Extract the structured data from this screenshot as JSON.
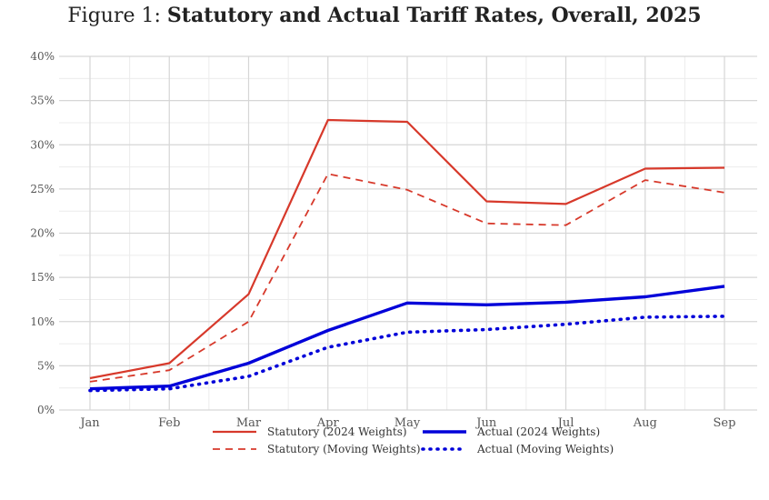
{
  "chart_data": {
    "type": "line",
    "title_prefix": "Figure 1:",
    "title": "Statutory and Actual Tariff Rates, Overall, 2025",
    "xlabel": "",
    "ylabel": "",
    "categories": [
      "Jan",
      "Feb",
      "Mar",
      "Apr",
      "May",
      "Jun",
      "Jul",
      "Aug",
      "Sep"
    ],
    "ylim": [
      0,
      40
    ],
    "yticks": [
      0,
      5,
      10,
      15,
      20,
      25,
      30,
      35,
      40
    ],
    "ytick_labels": [
      "0%",
      "5%",
      "10%",
      "15%",
      "20%",
      "25%",
      "30%",
      "35%",
      "40%"
    ],
    "grid": true,
    "legend_position": "bottom",
    "series": [
      {
        "name": "Statutory (2024 Weights)",
        "color": "#d7392b",
        "style": "solid",
        "values": [
          3.6,
          5.3,
          13.1,
          32.8,
          32.6,
          23.6,
          23.3,
          27.3,
          27.4
        ]
      },
      {
        "name": "Actual (2024 Weights)",
        "color": "#0000d9",
        "style": "solid-thick",
        "values": [
          2.4,
          2.7,
          5.3,
          9.0,
          12.1,
          11.9,
          12.2,
          12.8,
          14.0
        ]
      },
      {
        "name": "Statutory (Moving Weights)",
        "color": "#d7392b",
        "style": "dashed",
        "values": [
          3.2,
          4.5,
          10.0,
          26.7,
          24.9,
          21.1,
          20.9,
          26.0,
          24.6
        ]
      },
      {
        "name": "Actual (Moving Weights)",
        "color": "#0000d9",
        "style": "dotted",
        "values": [
          2.2,
          2.4,
          3.8,
          7.1,
          8.8,
          9.1,
          9.7,
          10.5,
          10.6
        ]
      }
    ]
  }
}
